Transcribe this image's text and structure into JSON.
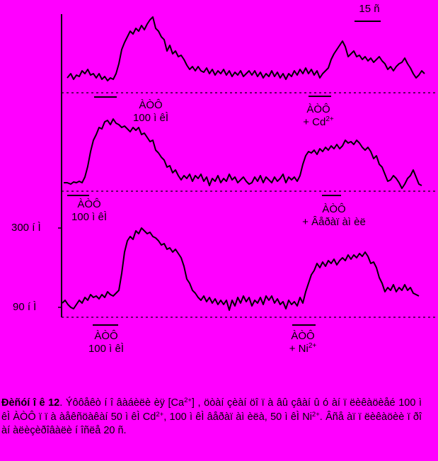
{
  "figure": {
    "colors": {
      "background": "#ff00ff",
      "ink": "#000000"
    },
    "time_scale": "15 ñ",
    "y_scale": {
      "upper": "300 í Ì",
      "lower": "90 í Ì"
    },
    "panels": [
      {
        "id": "top",
        "labels": [
          {
            "id": "atp1",
            "lines": [
              "ÀÒÔ",
              "100 ì êÌ"
            ]
          },
          {
            "id": "atp2",
            "line1": "ÀÒÔ",
            "line2_pre": "+ Cd",
            "line2_sup": "2+"
          }
        ]
      },
      {
        "id": "middle",
        "labels": [
          {
            "id": "atp1",
            "lines": [
              "ÀÒÔ",
              "100 ì êÌ"
            ]
          },
          {
            "id": "atp2",
            "lines": [
              "ÀÒÔ",
              "+ Âåðàï àì èë"
            ]
          }
        ]
      },
      {
        "id": "bottom",
        "labels": [
          {
            "id": "atp1",
            "lines": [
              "ÀÒÔ",
              "100 ì êÌ"
            ]
          },
          {
            "id": "atp2",
            "line1": "ÀÒÔ",
            "line2_pre": "+ Ni",
            "line2_sup": "2+"
          }
        ]
      }
    ]
  },
  "caption": {
    "bold": "Ðèñóí î ê 12",
    "t1": ". Ýôôåêò í î âàáèëè èÿ [Ca",
    "s1": "2+",
    "t2": "] , öòàí çèàí öî ï à âû çâàí û ó àí ï ëèêàöèåé 100 ì êÌ ÀÒÔ ï ï à àåêñöàêàí 50 ì êÌ Cd",
    "s2": "2+",
    "t3": ", 100 ì êÌ âåðàï àì èëà, 50 ì êÌ Ni",
    "s3": "2+",
    "t4": ". Âñå àï ï ëèêàöèè ï ðî àí àëèçèðîâàëè í îñëå 20 ñ."
  }
}
